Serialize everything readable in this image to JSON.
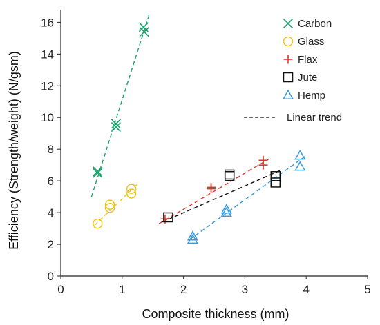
{
  "chart_data": {
    "type": "scatter",
    "title": "",
    "xlabel": "Composite thickness (mm)",
    "ylabel": "Efficiency (Strength/weight) (N/gsm)",
    "xlim": [
      0,
      5
    ],
    "ylim": [
      0,
      16.8
    ],
    "xticks": [
      0,
      1,
      2,
      3,
      4,
      5
    ],
    "yticks": [
      0,
      2,
      4,
      6,
      8,
      10,
      12,
      14,
      16
    ],
    "x_tick_labels": [
      "0",
      "1",
      "2",
      "3",
      "4",
      "5"
    ],
    "y_tick_labels": [
      "0",
      "2",
      "4",
      "6",
      "8",
      "10",
      "12",
      "14",
      "16"
    ],
    "grid": false,
    "legend_position": "top-right",
    "series": [
      {
        "name": "Carbon",
        "marker": "x",
        "color": "#1aa36a",
        "points": [
          [
            0.6,
            6.5
          ],
          [
            0.6,
            6.6
          ],
          [
            0.9,
            9.6
          ],
          [
            0.9,
            9.4
          ],
          [
            1.35,
            15.7
          ],
          [
            1.36,
            15.4
          ]
        ],
        "trend": [
          [
            0.5,
            5.0
          ],
          [
            1.45,
            16.6
          ]
        ]
      },
      {
        "name": "Glass",
        "marker": "circle",
        "color": "#f0c419",
        "points": [
          [
            0.6,
            3.3
          ],
          [
            0.8,
            4.5
          ],
          [
            0.8,
            4.3
          ],
          [
            1.15,
            5.5
          ],
          [
            1.15,
            5.2
          ]
        ],
        "trend": [
          [
            0.55,
            3.2
          ],
          [
            1.25,
            5.8
          ]
        ]
      },
      {
        "name": "Flax",
        "marker": "plus",
        "color": "#d63a2e",
        "points": [
          [
            1.7,
            3.6
          ],
          [
            2.45,
            5.6
          ],
          [
            2.45,
            5.5
          ],
          [
            3.3,
            7.3
          ],
          [
            3.3,
            7.0
          ]
        ],
        "trend": [
          [
            1.6,
            3.3
          ],
          [
            3.4,
            7.4
          ]
        ]
      },
      {
        "name": "Jute",
        "marker": "square",
        "color": "#111111",
        "points": [
          [
            1.75,
            3.7
          ],
          [
            2.75,
            6.3
          ],
          [
            2.75,
            6.4
          ],
          [
            3.5,
            6.3
          ],
          [
            3.5,
            5.9
          ]
        ],
        "trend": [
          [
            1.65,
            3.4
          ],
          [
            3.6,
            6.7
          ]
        ]
      },
      {
        "name": "Hemp",
        "marker": "triangle",
        "color": "#3a9ad9",
        "points": [
          [
            2.15,
            2.5
          ],
          [
            2.15,
            2.3
          ],
          [
            2.7,
            4.2
          ],
          [
            2.7,
            4.0
          ],
          [
            3.9,
            7.6
          ],
          [
            3.9,
            6.9
          ]
        ],
        "trend": [
          [
            2.1,
            2.3
          ],
          [
            4.0,
            7.6
          ]
        ]
      }
    ],
    "trend_legend_label": "Linear trend",
    "colors": {
      "axis": "#222222",
      "trend_legend": "#333333"
    }
  }
}
